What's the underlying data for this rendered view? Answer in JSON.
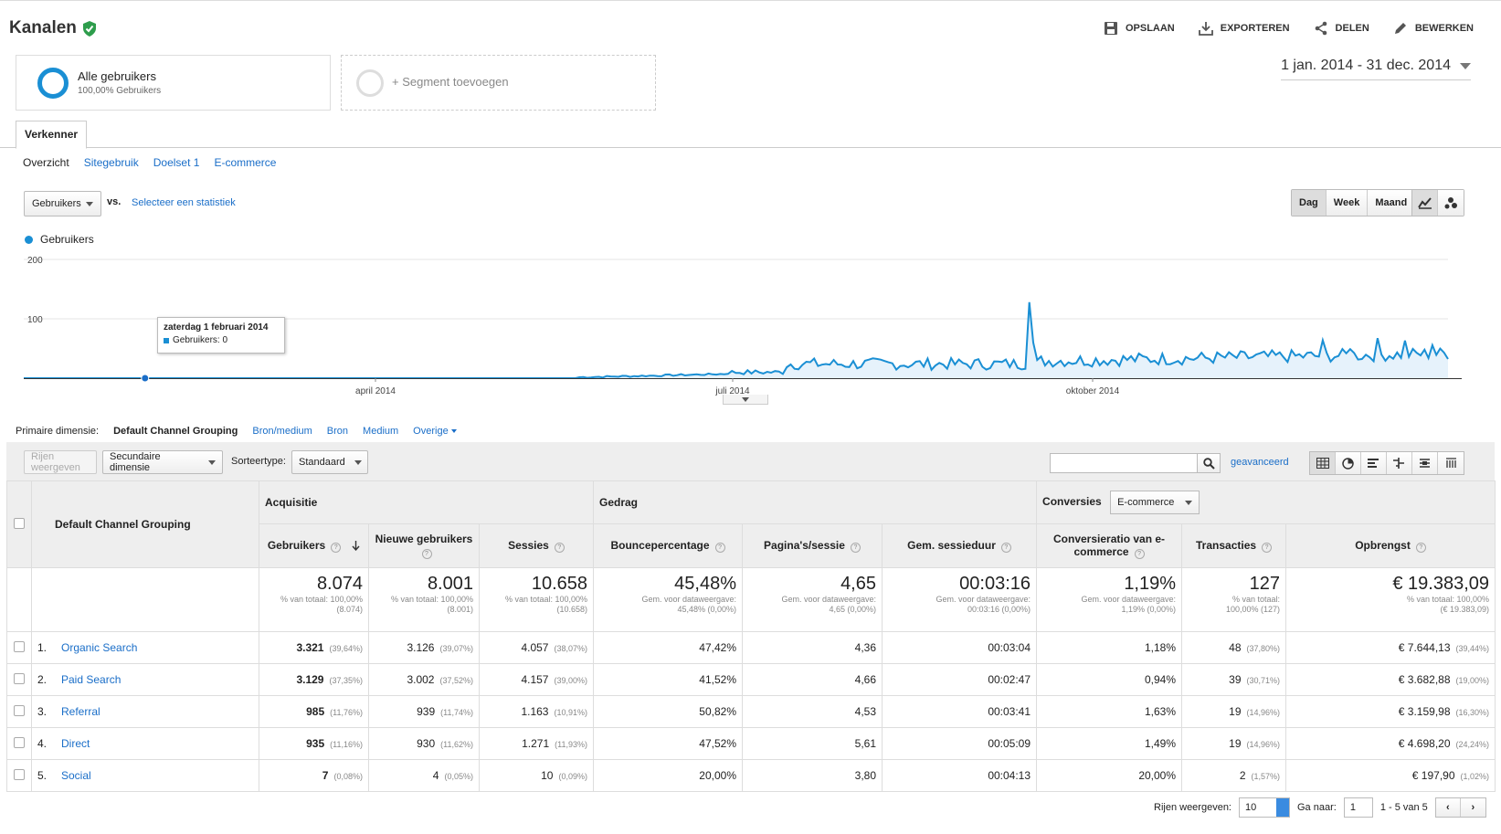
{
  "header": {
    "title": "Kanalen",
    "actions": [
      {
        "label": "OPSLAAN",
        "icon": "save-icon"
      },
      {
        "label": "EXPORTEREN",
        "icon": "download-icon"
      },
      {
        "label": "DELEN",
        "icon": "share-icon"
      },
      {
        "label": "BEWERKEN",
        "icon": "pencil-icon"
      }
    ]
  },
  "segments": {
    "active": {
      "name": "Alle gebruikers",
      "sub": "100,00% Gebruikers"
    },
    "add_label": "+ Segment toevoegen"
  },
  "date_range": "1 jan. 2014 - 31 dec. 2014",
  "tabs": {
    "active": "Verkenner"
  },
  "subtabs": [
    "Overzicht",
    "Sitegebruik",
    "Doelset 1",
    "E-commerce"
  ],
  "chart_controls": {
    "metric": "Gebruikers",
    "vs": "vs.",
    "select_stat": "Selecteer een statistiek",
    "periods": [
      "Dag",
      "Week",
      "Maand"
    ],
    "active_period": "Dag"
  },
  "chart_data": {
    "type": "area",
    "series": [
      {
        "name": "Gebruikers",
        "color": "#1a8fd4"
      }
    ],
    "y_ticks": [
      "200",
      "100"
    ],
    "ylim": [
      0,
      200
    ],
    "x_labels": [
      "april 2014",
      "juli 2014",
      "oktober 2014"
    ],
    "tooltip": {
      "date": "zaterdag 1 februari 2014",
      "text": "Gebruikers: 0"
    }
  },
  "dimensions": {
    "label": "Primaire dimensie:",
    "current": "Default Channel Grouping",
    "others": [
      "Bron/medium",
      "Bron",
      "Medium",
      "Overige"
    ]
  },
  "table_toolbar": {
    "rows_btn": "Rijen weergeven",
    "secondary": "Secundaire dimensie",
    "sort_label": "Sorteertype:",
    "sort_value": "Standaard",
    "advanced": "geavanceerd"
  },
  "table": {
    "dim_header": "Default Channel Grouping",
    "groups": {
      "acq": "Acquisitie",
      "beh": "Gedrag",
      "conv": "Conversies",
      "conv_select": "E-commerce"
    },
    "columns": [
      "Gebruikers",
      "Nieuwe gebruikers",
      "Sessies",
      "Bouncepercentage",
      "Pagina's/sessie",
      "Gem. sessieduur",
      "Conversieratio van e-commerce",
      "Transacties",
      "Opbrengst"
    ],
    "totals": [
      {
        "big": "8.074",
        "l1": "% van totaal: 100,00%",
        "l2": "(8.074)"
      },
      {
        "big": "8.001",
        "l1": "% van totaal: 100,00%",
        "l2": "(8.001)"
      },
      {
        "big": "10.658",
        "l1": "% van totaal: 100,00%",
        "l2": "(10.658)"
      },
      {
        "big": "45,48%",
        "l1": "Gem. voor dataweergave:",
        "l2": "45,48% (0,00%)"
      },
      {
        "big": "4,65",
        "l1": "Gem. voor dataweergave:",
        "l2": "4,65 (0,00%)"
      },
      {
        "big": "00:03:16",
        "l1": "Gem. voor dataweergave:",
        "l2": "00:03:16 (0,00%)"
      },
      {
        "big": "1,19%",
        "l1": "Gem. voor dataweergave:",
        "l2": "1,19% (0,00%)"
      },
      {
        "big": "127",
        "l1": "% van totaal:",
        "l2": "100,00% (127)"
      },
      {
        "big": "€ 19.383,09",
        "l1": "% van totaal: 100,00%",
        "l2": "(€ 19.383,09)"
      }
    ],
    "rows": [
      {
        "n": "1.",
        "name": "Organic Search",
        "users": "3.321",
        "users_pct": "(39,64%)",
        "new": "3.126",
        "new_pct": "(39,07%)",
        "sess": "4.057",
        "sess_pct": "(38,07%)",
        "bounce": "47,42%",
        "pps": "4,36",
        "dur": "00:03:04",
        "conv": "1,18%",
        "trans": "48",
        "trans_pct": "(37,80%)",
        "rev": "€ 7.644,13",
        "rev_pct": "(39,44%)"
      },
      {
        "n": "2.",
        "name": "Paid Search",
        "users": "3.129",
        "users_pct": "(37,35%)",
        "new": "3.002",
        "new_pct": "(37,52%)",
        "sess": "4.157",
        "sess_pct": "(39,00%)",
        "bounce": "41,52%",
        "pps": "4,66",
        "dur": "00:02:47",
        "conv": "0,94%",
        "trans": "39",
        "trans_pct": "(30,71%)",
        "rev": "€ 3.682,88",
        "rev_pct": "(19,00%)"
      },
      {
        "n": "3.",
        "name": "Referral",
        "users": "985",
        "users_pct": "(11,76%)",
        "new": "939",
        "new_pct": "(11,74%)",
        "sess": "1.163",
        "sess_pct": "(10,91%)",
        "bounce": "50,82%",
        "pps": "4,53",
        "dur": "00:03:41",
        "conv": "1,63%",
        "trans": "19",
        "trans_pct": "(14,96%)",
        "rev": "€ 3.159,98",
        "rev_pct": "(16,30%)"
      },
      {
        "n": "4.",
        "name": "Direct",
        "users": "935",
        "users_pct": "(11,16%)",
        "new": "930",
        "new_pct": "(11,62%)",
        "sess": "1.271",
        "sess_pct": "(11,93%)",
        "bounce": "47,52%",
        "pps": "5,61",
        "dur": "00:05:09",
        "conv": "1,49%",
        "trans": "19",
        "trans_pct": "(14,96%)",
        "rev": "€ 4.698,20",
        "rev_pct": "(24,24%)"
      },
      {
        "n": "5.",
        "name": "Social",
        "users": "7",
        "users_pct": "(0,08%)",
        "new": "4",
        "new_pct": "(0,05%)",
        "sess": "10",
        "sess_pct": "(0,09%)",
        "bounce": "20,00%",
        "pps": "3,80",
        "dur": "00:04:13",
        "conv": "20,00%",
        "trans": "2",
        "trans_pct": "(1,57%)",
        "rev": "€ 197,90",
        "rev_pct": "(1,02%)"
      }
    ]
  },
  "pager": {
    "rows_label": "Rijen weergeven:",
    "rows_value": "10",
    "goto_label": "Ga naar:",
    "goto_value": "1",
    "range": "1 - 5 van 5"
  }
}
